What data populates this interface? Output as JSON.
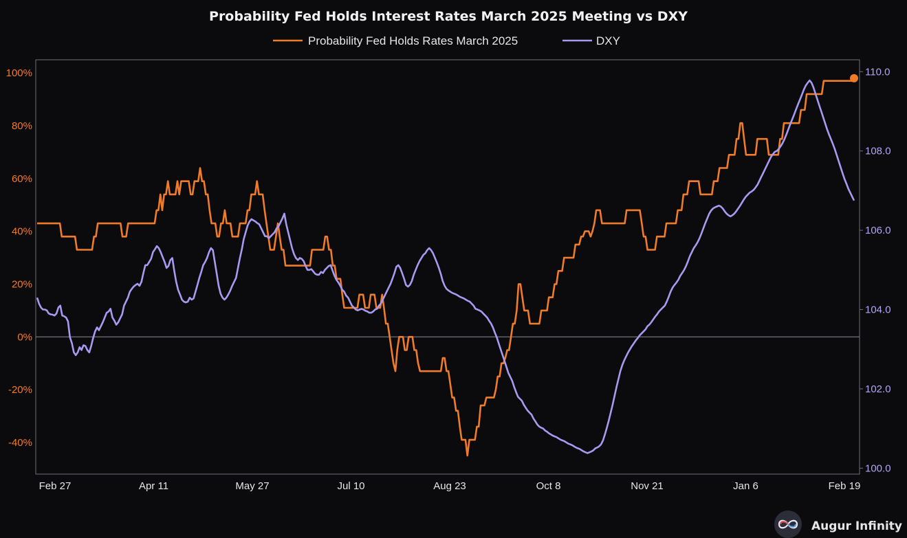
{
  "brand": {
    "name": "Augur Infinity",
    "logo_icon": "infinity-logo-icon"
  },
  "colors": {
    "background": "#0b0b0e",
    "probability": "#f07c2a",
    "dxy": "#a99af0",
    "axis": "#6d7178",
    "zero_line": "#8a8f96"
  },
  "chart_data": {
    "type": "line",
    "title": "Probability Fed Holds Interest Rates March 2025 Meeting vs DXY",
    "legend_position": "top-center",
    "grid": false,
    "x_labels": [
      "Feb 27",
      "Apr 11",
      "May 27",
      "Jul 10",
      "Aug 23",
      "Oct 8",
      "Nov 21",
      "Jan 6",
      "Feb 19"
    ],
    "y_left": {
      "ticks": [
        "100%",
        "80%",
        "60%",
        "40%",
        "20%",
        "0%",
        "-20%",
        "-40%"
      ],
      "range": [
        -52,
        105
      ]
    },
    "y_right": {
      "ticks": [
        "110.0",
        "108.0",
        "106.0",
        "104.0",
        "102.0",
        "100.0"
      ],
      "range": [
        99.85,
        110.3
      ]
    },
    "series": [
      {
        "name": "Probability Fed Holds Rates March 2025",
        "axis": "left",
        "end_marker": true,
        "values": [
          43,
          43,
          43,
          43,
          43,
          43,
          43,
          43,
          43,
          43,
          43,
          43,
          43,
          38,
          38,
          38,
          38,
          38,
          38,
          38,
          38,
          33,
          33,
          33,
          33,
          33,
          33,
          33,
          33,
          33,
          38,
          38,
          43,
          43,
          43,
          43,
          43,
          43,
          43,
          43,
          43,
          43,
          43,
          43,
          43,
          38,
          38,
          38,
          43,
          43,
          43,
          43,
          43,
          43,
          43,
          43,
          43,
          43,
          43,
          43,
          43,
          43,
          43,
          48,
          48,
          54,
          48,
          54,
          54,
          59,
          54,
          54,
          54,
          54,
          59,
          54,
          59,
          59,
          59,
          59,
          59,
          54,
          54,
          59,
          59,
          59,
          64,
          59,
          59,
          54,
          54,
          48,
          43,
          43,
          43,
          38,
          38,
          43,
          43,
          48,
          43,
          43,
          43,
          38,
          38,
          38,
          38,
          43,
          43,
          43,
          43,
          48,
          48,
          54,
          54,
          54,
          59,
          54,
          54,
          54,
          48,
          43,
          38,
          33,
          33,
          33,
          38,
          43,
          38,
          33,
          33,
          27,
          27,
          27,
          27,
          27,
          27,
          27,
          27,
          27,
          27,
          27,
          27,
          27,
          27,
          33,
          33,
          33,
          33,
          33,
          33,
          33,
          38,
          38,
          33,
          33,
          27,
          27,
          22,
          22,
          22,
          16,
          11,
          11,
          11,
          11,
          11,
          11,
          11,
          11,
          16,
          16,
          16,
          11,
          11,
          11,
          16,
          16,
          16,
          11,
          11,
          11,
          16,
          11,
          5,
          5,
          0,
          -5,
          -10,
          -13,
          -5,
          0,
          0,
          0,
          -5,
          -5,
          0,
          0,
          0,
          -5,
          -5,
          -10,
          -13,
          -13,
          -13,
          -13,
          -13,
          -13,
          -13,
          -13,
          -13,
          -13,
          -13,
          -13,
          -8,
          -8,
          -13,
          -13,
          -18,
          -23,
          -23,
          -28,
          -28,
          -34,
          -39,
          -39,
          -39,
          -45,
          -39,
          -39,
          -39,
          -39,
          -34,
          -34,
          -26,
          -26,
          -26,
          -23,
          -23,
          -23,
          -23,
          -23,
          -20,
          -15,
          -15,
          -10,
          -10,
          -8,
          -5,
          -5,
          0,
          5,
          5,
          10,
          20,
          20,
          15,
          10,
          10,
          10,
          5,
          5,
          5,
          5,
          5,
          5,
          10,
          10,
          10,
          10,
          15,
          15,
          15,
          20,
          20,
          25,
          25,
          25,
          30,
          30,
          30,
          30,
          30,
          30,
          35,
          35,
          35,
          38,
          38,
          40,
          40,
          40,
          38,
          40,
          43,
          48,
          48,
          48,
          43,
          43,
          43,
          43,
          43,
          43,
          43,
          43,
          43,
          43,
          43,
          43,
          43,
          48,
          48,
          48,
          48,
          48,
          48,
          48,
          48,
          43,
          38,
          38,
          33,
          33,
          33,
          33,
          33,
          38,
          38,
          38,
          38,
          38,
          43,
          43,
          43,
          43,
          43,
          43,
          48,
          48,
          48,
          54,
          54,
          54,
          59,
          59,
          59,
          59,
          59,
          59,
          54,
          54,
          54,
          54,
          54,
          54,
          54,
          59,
          59,
          59,
          64,
          64,
          64,
          64,
          64,
          69,
          69,
          69,
          69,
          75,
          75,
          81,
          81,
          75,
          69,
          69,
          69,
          69,
          69,
          69,
          75,
          75,
          75,
          75,
          75,
          75,
          69,
          69,
          69,
          69,
          69,
          69,
          75,
          75,
          81,
          81,
          81,
          81,
          81,
          81,
          81,
          81,
          81,
          86,
          86,
          86,
          92,
          92,
          92,
          92,
          92,
          92,
          92,
          92,
          92,
          97,
          97,
          97,
          97,
          97,
          97,
          97,
          97,
          97,
          97,
          97,
          97,
          97,
          97,
          97,
          97,
          98
        ]
      },
      {
        "name": "DXY",
        "axis": "right",
        "values": [
          104.3,
          104.15,
          104.05,
          104.0,
          104.0,
          103.98,
          103.9,
          103.88,
          103.87,
          103.85,
          103.9,
          104.05,
          104.1,
          103.85,
          103.83,
          103.8,
          103.7,
          103.3,
          103.15,
          102.92,
          102.85,
          102.92,
          103.05,
          102.98,
          103.1,
          103.08,
          102.98,
          102.92,
          103.08,
          103.28,
          103.45,
          103.55,
          103.48,
          103.58,
          103.68,
          103.8,
          103.92,
          103.95,
          104.02,
          103.8,
          103.72,
          103.62,
          103.68,
          103.78,
          103.88,
          104.1,
          104.2,
          104.3,
          104.45,
          104.52,
          104.58,
          104.62,
          104.65,
          104.6,
          104.7,
          104.92,
          105.12,
          105.12,
          105.2,
          105.28,
          105.45,
          105.52,
          105.6,
          105.55,
          105.45,
          105.32,
          105.2,
          105.05,
          105.1,
          105.25,
          105.3,
          104.98,
          104.7,
          104.5,
          104.38,
          104.25,
          104.2,
          104.18,
          104.2,
          104.3,
          104.25,
          104.28,
          104.45,
          104.62,
          104.8,
          104.95,
          105.12,
          105.2,
          105.3,
          105.45,
          105.55,
          105.5,
          105.2,
          104.9,
          104.6,
          104.4,
          104.3,
          104.25,
          104.3,
          104.38,
          104.48,
          104.6,
          104.7,
          104.8,
          105.05,
          105.3,
          105.52,
          105.78,
          105.95,
          106.12,
          106.22,
          106.28,
          106.25,
          106.22,
          106.18,
          106.15,
          106.05,
          105.95,
          105.85,
          105.85,
          105.8,
          105.85,
          105.9,
          105.95,
          106.05,
          106.1,
          106.2,
          106.3,
          106.42,
          106.15,
          105.95,
          105.75,
          105.55,
          105.4,
          105.3,
          105.25,
          105.3,
          105.28,
          105.22,
          105.1,
          105.0,
          105.0,
          105.02,
          104.96,
          104.9,
          104.88,
          104.88,
          104.95,
          104.92,
          105.0,
          105.05,
          105.1,
          105.12,
          104.98,
          104.85,
          104.75,
          104.68,
          104.6,
          104.5,
          104.45,
          104.35,
          104.3,
          104.2,
          104.1,
          104.05,
          104.0,
          103.98,
          104.0,
          104.02,
          104.0,
          103.97,
          103.95,
          103.92,
          103.92,
          103.95,
          104.0,
          104.02,
          104.1,
          104.15,
          104.25,
          104.35,
          104.45,
          104.55,
          104.65,
          104.78,
          104.92,
          105.08,
          105.12,
          105.05,
          104.92,
          104.78,
          104.62,
          104.58,
          104.62,
          104.72,
          104.88,
          105.0,
          105.12,
          105.22,
          105.3,
          105.38,
          105.42,
          105.5,
          105.55,
          105.5,
          105.42,
          105.3,
          105.18,
          105.05,
          104.9,
          104.72,
          104.6,
          104.52,
          104.48,
          104.45,
          104.42,
          104.4,
          104.38,
          104.35,
          104.32,
          104.3,
          104.28,
          104.25,
          104.22,
          104.2,
          104.15,
          104.1,
          104.02,
          104.0,
          103.98,
          103.95,
          103.9,
          103.85,
          103.8,
          103.72,
          103.65,
          103.55,
          103.42,
          103.3,
          103.15,
          103.0,
          102.85,
          102.7,
          102.55,
          102.4,
          102.3,
          102.2,
          102.05,
          101.92,
          101.8,
          101.75,
          101.7,
          101.6,
          101.52,
          101.45,
          101.4,
          101.35,
          101.25,
          101.18,
          101.1,
          101.05,
          101.02,
          101.0,
          100.95,
          100.92,
          100.88,
          100.85,
          100.82,
          100.8,
          100.78,
          100.75,
          100.72,
          100.7,
          100.68,
          100.65,
          100.62,
          100.6,
          100.58,
          100.55,
          100.52,
          100.5,
          100.48,
          100.45,
          100.42,
          100.4,
          100.38,
          100.4,
          100.42,
          100.45,
          100.5,
          100.52,
          100.55,
          100.6,
          100.7,
          100.85,
          101.02,
          101.2,
          101.4,
          101.6,
          101.82,
          102.05,
          102.25,
          102.45,
          102.6,
          102.72,
          102.82,
          102.92,
          103.0,
          103.08,
          103.15,
          103.22,
          103.28,
          103.35,
          103.4,
          103.45,
          103.5,
          103.58,
          103.62,
          103.68,
          103.75,
          103.82,
          103.88,
          103.95,
          104.0,
          104.05,
          104.1,
          104.2,
          104.32,
          104.45,
          104.55,
          104.62,
          104.68,
          104.75,
          104.85,
          104.92,
          105.0,
          105.1,
          105.22,
          105.35,
          105.45,
          105.55,
          105.62,
          105.7,
          105.8,
          105.92,
          106.05,
          106.18,
          106.3,
          106.42,
          106.5,
          106.55,
          106.58,
          106.6,
          106.62,
          106.6,
          106.55,
          106.48,
          106.42,
          106.38,
          106.35,
          106.38,
          106.42,
          106.48,
          106.55,
          106.62,
          106.7,
          106.78,
          106.85,
          106.9,
          106.95,
          106.98,
          107.02,
          107.08,
          107.15,
          107.25,
          107.35,
          107.45,
          107.55,
          107.65,
          107.75,
          107.85,
          107.92,
          107.98,
          108.0,
          108.05,
          108.12,
          108.2,
          108.3,
          108.42,
          108.55,
          108.68,
          108.8,
          108.92,
          109.05,
          109.18,
          109.3,
          109.42,
          109.55,
          109.65,
          109.72,
          109.78,
          109.72,
          109.6,
          109.45,
          109.3,
          109.15,
          109.0,
          108.85,
          108.7,
          108.55,
          108.42,
          108.3,
          108.18,
          108.05,
          107.9,
          107.75,
          107.6,
          107.45,
          107.3,
          107.18,
          107.05,
          106.95,
          106.85,
          106.75
        ]
      }
    ]
  }
}
